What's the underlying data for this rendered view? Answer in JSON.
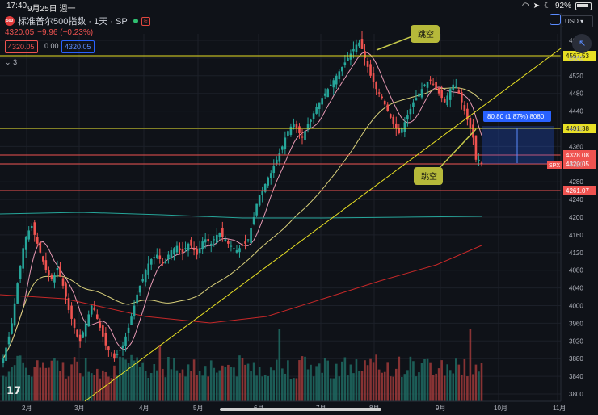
{
  "status": {
    "time": "17:40",
    "date": "9月25日 週一",
    "battery": "92%"
  },
  "header": {
    "title": "标准普尔500指数 · 1天 · SP",
    "logo_text": "500",
    "wave_icon": "≈",
    "price": "4320.05",
    "change": "−9.96 (−0.23%)",
    "sell_price": "4320.05",
    "spread": "0.00",
    "buy_price": "4320.05",
    "indicators_count": "3",
    "currency": "USD"
  },
  "annotations": {
    "gap_top": "跳空",
    "gap_bottom": "跳空",
    "measure": "80.80 (1.87%) 8080",
    "spx_tag": "SPX"
  },
  "price_tags": [
    {
      "label": "4567.53",
      "color": "#e8e024"
    },
    {
      "label": "4401.38",
      "color": "#e8e024"
    },
    {
      "label": "4328.08",
      "color": "#ef5350"
    },
    {
      "label": "4320.05",
      "color": "#ef5350"
    },
    {
      "label": "4261.07",
      "color": "#ef5350"
    }
  ],
  "chart_data": {
    "type": "candlestick",
    "x_ticks": [
      "2月",
      "3月",
      "4月",
      "5月",
      "6月",
      "7月",
      "8月",
      "9月",
      "10月",
      "11月"
    ],
    "y_ticks": [
      4600,
      4560,
      4520,
      4480,
      4440,
      4400,
      4360,
      4320,
      4280,
      4240,
      4200,
      4160,
      4120,
      4080,
      4040,
      4000,
      3960,
      3920,
      3880,
      3840,
      3800
    ],
    "ylim": [
      3790,
      4615
    ],
    "horizontal_levels": [
      4567.53,
      4401.38,
      4328.08,
      4320.05,
      4261.07
    ],
    "close_approx": [
      3880,
      3905,
      3930,
      3960,
      4005,
      4050,
      4090,
      4130,
      4155,
      4170,
      4180,
      4160,
      4140,
      4120,
      4100,
      4080,
      4070,
      4060,
      4070,
      4085,
      4065,
      4045,
      4020,
      3990,
      3970,
      3950,
      3930,
      3920,
      3940,
      3960,
      3980,
      4000,
      3990,
      3970,
      3950,
      3930,
      3910,
      3900,
      3890,
      3880,
      3890,
      3900,
      3910,
      3930,
      3950,
      3975,
      4000,
      4025,
      4045,
      4060,
      4080,
      4095,
      4105,
      4110,
      4115,
      4105,
      4095,
      4100,
      4115,
      4125,
      4130,
      4135,
      4125,
      4120,
      4130,
      4140,
      4135,
      4125,
      4115,
      4130,
      4145,
      4150,
      4145,
      4140,
      4150,
      4160,
      4165,
      4155,
      4150,
      4140,
      4135,
      4130,
      4125,
      4130,
      4135,
      4140,
      4150,
      4175,
      4200,
      4230,
      4250,
      4260,
      4275,
      4290,
      4300,
      4315,
      4330,
      4345,
      4360,
      4380,
      4395,
      4405,
      4410,
      4400,
      4390,
      4380,
      4395,
      4410,
      4420,
      4435,
      4450,
      4460,
      4470,
      4480,
      4490,
      4500,
      4510,
      4520,
      4530,
      4540,
      4550,
      4560,
      4570,
      4580,
      4590,
      4595,
      4580,
      4560,
      4540,
      4520,
      4505,
      4490,
      4480,
      4470,
      4455,
      4440,
      4425,
      4410,
      4400,
      4390,
      4400,
      4415,
      4430,
      4445,
      4460,
      4470,
      4480,
      4490,
      4500,
      4505,
      4510,
      4500,
      4490,
      4480,
      4470,
      4460,
      4475,
      4490,
      4500,
      4495,
      4480,
      4460,
      4440,
      4420,
      4400,
      4380,
      4330,
      4330,
      4320
    ],
    "moving_averages": [
      "pink short MA",
      "yellow long MA",
      "red 200-day MA",
      "teal 3-line"
    ]
  }
}
